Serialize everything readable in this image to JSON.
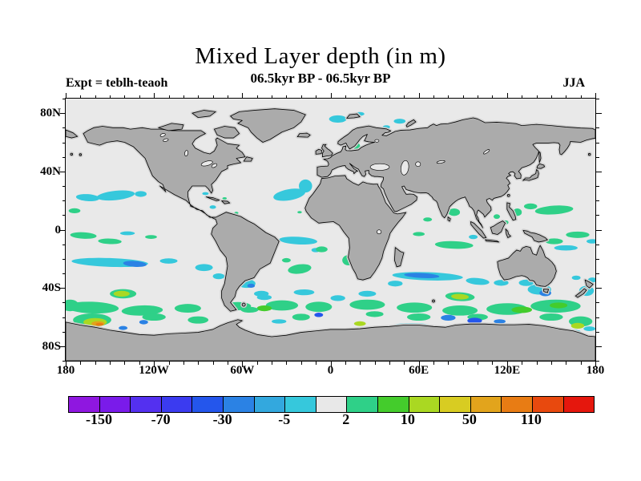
{
  "header": {
    "title": "Mixed Layer depth (in m)",
    "subtitle": "06.5kyr BP - 06.5kyr BP",
    "experiment": "Expt = teblh-teaoh",
    "season": "JJA"
  },
  "axes": {
    "lat_ticks": [
      {
        "label": "80N",
        "deg": 80
      },
      {
        "label": "40N",
        "deg": 40
      },
      {
        "label": "0",
        "deg": 0
      },
      {
        "label": "40S",
        "deg": -40
      },
      {
        "label": "80S",
        "deg": -80
      }
    ],
    "lon_ticks": [
      {
        "label": "180",
        "deg": -180
      },
      {
        "label": "120W",
        "deg": -120
      },
      {
        "label": "60W",
        "deg": -60
      },
      {
        "label": "0",
        "deg": 0
      },
      {
        "label": "60E",
        "deg": 60
      },
      {
        "label": "120E",
        "deg": 120
      },
      {
        "label": "180",
        "deg": 180
      }
    ],
    "minor_tick_step_deg": 10
  },
  "colorbar": {
    "labels": [
      "-150",
      "-70",
      "-30",
      "-5",
      "2",
      "10",
      "50",
      "110"
    ],
    "boundary_indices": [
      1,
      3,
      5,
      7,
      9,
      11,
      13,
      15
    ],
    "colors": [
      "#8F17E0",
      "#7A1BEA",
      "#5430F0",
      "#3B3BF0",
      "#2456EC",
      "#2B82E4",
      "#33A8DE",
      "#36C8DC",
      "#E8E8E8",
      "#2FD088",
      "#44CC2C",
      "#AAD822",
      "#D8CC22",
      "#E2A41C",
      "#E87C14",
      "#E8490E",
      "#E5170D"
    ]
  },
  "chart_data": {
    "type": "heatmap",
    "subtype": "filled_contour_world_map",
    "title": "Mixed Layer depth (in m)",
    "period": "06.5kyr BP - 06.5kyr BP",
    "season": "JJA",
    "experiment": "teblh-teaoh",
    "units": "m",
    "projection": "equirectangular",
    "lon_range": [
      -180,
      180
    ],
    "lat_range": [
      -90,
      90
    ],
    "labeled_levels": [
      -150,
      -70,
      -30,
      -5,
      2,
      10,
      50,
      110
    ],
    "value_ranges_by_color_pair": [
      "< -150",
      "-150 to -70",
      "-70 to -30",
      "-30 to -5",
      "-5 to 2 (near-zero, gray)",
      "2 to 10",
      "10 to 50",
      "50 to 110",
      "> 110"
    ],
    "land_color": "#ABABAB",
    "ocean_background_color": "#E9E9E9",
    "region_format": "[lon_center, lat_center, lon_radius_deg, lat_radius_deg, rotation_deg, palette_color_index]",
    "regions": [
      [
        5,
        76,
        6,
        2.5,
        0,
        7
      ],
      [
        20,
        79.5,
        3,
        1.3,
        0,
        7
      ],
      [
        47,
        74.5,
        4,
        1.7,
        0,
        7
      ],
      [
        27,
        69,
        2,
        1.1,
        0,
        7
      ],
      [
        38,
        70.5,
        2.5,
        1.2,
        0,
        7
      ],
      [
        17.5,
        57.5,
        2.6,
        2.2,
        0,
        9
      ],
      [
        19,
        62.5,
        1.2,
        0.8,
        0,
        7
      ],
      [
        12,
        56.5,
        1.2,
        0.9,
        0,
        7
      ],
      [
        -19,
        65.8,
        1.2,
        0.7,
        0,
        9
      ],
      [
        -146,
        23.5,
        13,
        3.2,
        -6,
        7
      ],
      [
        -165,
        22,
        8,
        2.4,
        4,
        7
      ],
      [
        -129,
        24.5,
        4,
        2,
        0,
        7
      ],
      [
        -85,
        24.8,
        2.2,
        1,
        0,
        7
      ],
      [
        -80,
        15.5,
        2.2,
        1.2,
        0,
        7
      ],
      [
        -72,
        21.5,
        1.5,
        0.8,
        0,
        9
      ],
      [
        -64,
        11.5,
        1.4,
        0.8,
        0,
        9
      ],
      [
        -90,
        14,
        1.5,
        0.8,
        0,
        7
      ],
      [
        -28,
        24,
        11,
        3.8,
        -10,
        7
      ],
      [
        -17,
        30,
        4.5,
        4.5,
        0,
        7
      ],
      [
        -21,
        12,
        1.5,
        0.8,
        0,
        9
      ],
      [
        152,
        13.5,
        13,
        3,
        -4,
        9
      ],
      [
        136,
        16,
        4.5,
        2,
        0,
        9
      ],
      [
        -174,
        13,
        4,
        1.7,
        0,
        9
      ],
      [
        127,
        12,
        3,
        2.6,
        0,
        9
      ],
      [
        113,
        9,
        2.2,
        1.6,
        0,
        9
      ],
      [
        119,
        5,
        2,
        1.4,
        0,
        9
      ],
      [
        84,
        12,
        4,
        2.6,
        0,
        9
      ],
      [
        66,
        7,
        3,
        1.4,
        0,
        9
      ],
      [
        168,
        -3.5,
        8,
        2.2,
        0,
        9
      ],
      [
        152,
        -8,
        6,
        2,
        0,
        9
      ],
      [
        160,
        -12.5,
        8,
        1.8,
        0,
        7
      ],
      [
        178,
        -8,
        4,
        1.5,
        0,
        7
      ],
      [
        -168,
        -4,
        9,
        2.2,
        3,
        9
      ],
      [
        -150,
        -8,
        8,
        1.9,
        2,
        9
      ],
      [
        -138,
        -2.5,
        5,
        1.3,
        0,
        7
      ],
      [
        -122,
        -5,
        4,
        1.3,
        0,
        9
      ],
      [
        84,
        -10.5,
        13,
        2.6,
        2,
        9
      ],
      [
        60,
        -3,
        4,
        1.4,
        0,
        9
      ],
      [
        97,
        -5,
        3,
        1.5,
        0,
        7
      ],
      [
        -22,
        -7.5,
        13,
        2.6,
        3,
        7
      ],
      [
        -10,
        -14,
        3,
        1.5,
        0,
        7
      ],
      [
        -21,
        -27,
        8,
        3.2,
        -8,
        9
      ],
      [
        12,
        -21,
        4,
        3.5,
        0,
        9
      ],
      [
        -6,
        -13.5,
        4,
        2,
        0,
        9
      ],
      [
        -30,
        -21,
        3,
        1.5,
        0,
        9
      ],
      [
        -150,
        -22.5,
        26,
        3,
        2,
        7
      ],
      [
        -133,
        -23.5,
        8,
        2,
        4,
        5
      ],
      [
        -86,
        -26,
        6,
        2.4,
        0,
        7
      ],
      [
        -110,
        -21.5,
        6,
        1.8,
        0,
        7
      ],
      [
        -76,
        -32,
        4,
        2,
        0,
        7
      ],
      [
        66,
        -32,
        24,
        2.8,
        2,
        7
      ],
      [
        62,
        -31.5,
        12,
        1.7,
        3,
        5
      ],
      [
        100,
        -35.5,
        8,
        2.3,
        5,
        7
      ],
      [
        116,
        -36.5,
        5,
        2,
        0,
        7
      ],
      [
        44,
        -37,
        5,
        2,
        0,
        7
      ],
      [
        142,
        -41,
        8,
        3.6,
        0,
        7
      ],
      [
        146,
        -43.5,
        4,
        2.2,
        0,
        5
      ],
      [
        133,
        -36.5,
        5,
        2.2,
        0,
        7
      ],
      [
        174,
        -42,
        5,
        3.5,
        0,
        7
      ],
      [
        178,
        -34.5,
        3,
        1.7,
        0,
        7
      ],
      [
        167,
        -33,
        3,
        1.5,
        0,
        7
      ],
      [
        -141,
        -44,
        9,
        3.2,
        0,
        9
      ],
      [
        -142,
        -44,
        5.5,
        2,
        0,
        11
      ],
      [
        -57,
        -37,
        6,
        3,
        0,
        7
      ],
      [
        -54,
        -38.5,
        2.6,
        1.4,
        0,
        5
      ],
      [
        -47,
        -44,
        5,
        2,
        0,
        7
      ],
      [
        -162,
        -53.5,
        18,
        4,
        2,
        9
      ],
      [
        -128,
        -55.5,
        14,
        3.5,
        -2,
        9
      ],
      [
        -97,
        -54,
        9,
        3,
        0,
        9
      ],
      [
        -63,
        -52.5,
        9,
        2.8,
        0,
        9
      ],
      [
        -33,
        -52,
        11,
        3.5,
        0,
        9
      ],
      [
        -8,
        -53,
        9,
        3.5,
        0,
        9
      ],
      [
        25,
        -51.5,
        12,
        3.5,
        0,
        9
      ],
      [
        57,
        -53.5,
        12,
        3.5,
        0,
        9
      ],
      [
        88,
        -55.5,
        12,
        3.5,
        0,
        9
      ],
      [
        120,
        -54.5,
        14,
        4,
        0,
        9
      ],
      [
        153,
        -52.5,
        17,
        4.5,
        0,
        9
      ],
      [
        -177,
        -52,
        6,
        4,
        0,
        9
      ],
      [
        130,
        -55,
        7,
        2.2,
        0,
        10
      ],
      [
        155,
        -52,
        6,
        2,
        0,
        10
      ],
      [
        -45,
        -54,
        5,
        2,
        0,
        10
      ],
      [
        20,
        -64.5,
        4,
        1.6,
        0,
        11
      ],
      [
        88,
        -46,
        10,
        3,
        3,
        9
      ],
      [
        88,
        -46,
        6,
        1.9,
        3,
        11
      ],
      [
        -55,
        -55,
        6,
        2,
        0,
        9
      ],
      [
        -162,
        -62,
        13,
        4.5,
        0,
        9
      ],
      [
        -160,
        -63.5,
        8,
        2.8,
        0,
        11
      ],
      [
        -158,
        -64.5,
        4.5,
        1.7,
        0,
        13
      ],
      [
        -157,
        -65,
        2.6,
        1,
        0,
        14
      ],
      [
        170,
        -63,
        8,
        3.5,
        0,
        9
      ],
      [
        168,
        -66,
        4.5,
        2,
        0,
        11
      ],
      [
        176,
        -68,
        4,
        1.6,
        0,
        7
      ],
      [
        150,
        -60,
        8,
        2.5,
        0,
        9
      ],
      [
        60,
        -60,
        8,
        2.5,
        0,
        9
      ],
      [
        -20,
        -60,
        6,
        2.3,
        0,
        9
      ],
      [
        -90,
        -62,
        7,
        2.5,
        0,
        9
      ],
      [
        -120,
        -60,
        8,
        2.5,
        0,
        9
      ],
      [
        30,
        -58,
        6,
        2,
        0,
        9
      ],
      [
        100,
        -60,
        7,
        2.2,
        0,
        9
      ],
      [
        -141,
        -67.5,
        3,
        1.4,
        0,
        5
      ],
      [
        -127,
        -63.5,
        3,
        1.5,
        0,
        5
      ],
      [
        98,
        -62.5,
        5,
        2,
        0,
        4
      ],
      [
        80,
        -60.5,
        5,
        2,
        0,
        5
      ],
      [
        -8,
        -58.5,
        3,
        1.5,
        0,
        4
      ],
      [
        115,
        -63,
        4,
        1.5,
        0,
        5
      ],
      [
        55,
        -65.5,
        12,
        1.3,
        0,
        7
      ],
      [
        120,
        -65.5,
        8,
        1.2,
        0,
        7
      ],
      [
        -35,
        -63,
        5,
        1.5,
        0,
        7
      ],
      [
        165,
        -70,
        5,
        1.3,
        0,
        7
      ],
      [
        -18,
        -43,
        7,
        2,
        0,
        7
      ],
      [
        -45,
        -46.5,
        5,
        1.8,
        0,
        7
      ],
      [
        25,
        -44,
        6,
        2,
        0,
        7
      ],
      [
        -70,
        -45,
        4,
        1.8,
        0,
        7
      ],
      [
        5,
        -47,
        5,
        2,
        0,
        7
      ]
    ]
  }
}
